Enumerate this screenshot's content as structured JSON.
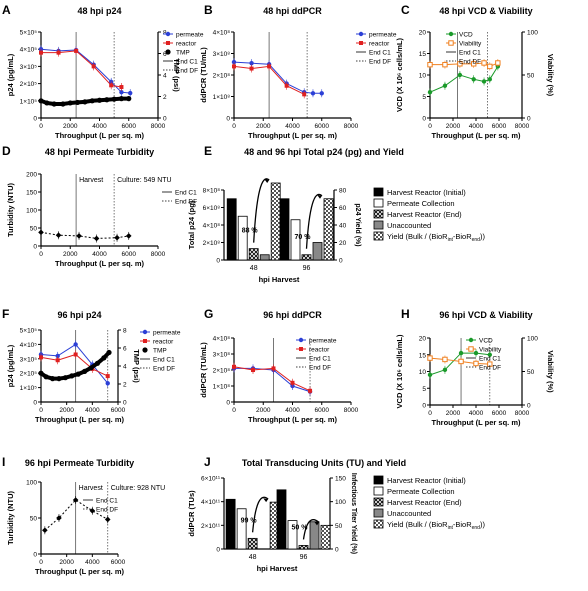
{
  "chart_data": [
    {
      "id": "A",
      "letter": "A",
      "type": "line",
      "title": "48 hpi p24",
      "xlabel": "Throughput (L per sq. m)",
      "ylabel": "p24 (pg/mL)",
      "y2label": "TMP (psi)",
      "xlim": [
        0,
        8000
      ],
      "xticks": [
        "0",
        "2000",
        "4000",
        "6000",
        "8000"
      ],
      "ylim": [
        0,
        500000
      ],
      "yticks": [
        "0",
        "1×10⁵",
        "2×10⁵",
        "3×10⁵",
        "4×10⁵",
        "5×10⁵"
      ],
      "y2lim": [
        0,
        8
      ],
      "y2ticks": [
        "0",
        "2",
        "4",
        "6",
        "8"
      ],
      "vlines": [
        2400,
        5000
      ],
      "legend": [
        "permeate",
        "reactor",
        "TMP",
        "End C1",
        "End DF"
      ],
      "series": [
        {
          "name": "permeate",
          "color": "#2b3fd6",
          "marker": "circle",
          "axis": "y",
          "x": [
            0,
            1200,
            2400,
            3600,
            4800,
            5500,
            6100
          ],
          "y": [
            400000,
            390000,
            395000,
            310000,
            210000,
            150000,
            145000
          ]
        },
        {
          "name": "reactor",
          "color": "#e02020",
          "marker": "square",
          "axis": "y",
          "x": [
            0,
            1200,
            2400,
            3600,
            4800,
            5500
          ],
          "y": [
            380000,
            380000,
            390000,
            300000,
            190000,
            180000
          ]
        },
        {
          "name": "TMP",
          "color": "#000000",
          "marker": "dots",
          "axis": "y2",
          "x": [
            0,
            400,
            900,
            1500,
            2000,
            2500,
            3000,
            3500,
            4000,
            4500,
            5000,
            5500,
            6000
          ],
          "y": [
            1.6,
            1.4,
            1.3,
            1.3,
            1.4,
            1.45,
            1.5,
            1.6,
            1.65,
            1.7,
            1.75,
            1.8,
            1.8
          ]
        }
      ]
    },
    {
      "id": "B",
      "letter": "B",
      "type": "line",
      "title": "48 hpi ddPCR",
      "xlabel": "Throughput (L per sq. m)",
      "ylabel": "ddPCR (TU/mL)",
      "xlim": [
        0,
        8000
      ],
      "xticks": [
        "0",
        "2000",
        "4000",
        "6000",
        "8000"
      ],
      "ylim": [
        0,
        400000000
      ],
      "yticks": [
        "0",
        "1×10⁸",
        "2×10⁸",
        "3×10⁸",
        "4×10⁸"
      ],
      "vlines": [
        2400,
        5000
      ],
      "legend": [
        "permeate",
        "reactor",
        "End C1",
        "End DF"
      ],
      "series": [
        {
          "name": "permeate",
          "color": "#2b3fd6",
          "marker": "circle",
          "axis": "y",
          "x": [
            0,
            1200,
            2400,
            3600,
            4800,
            5400,
            6000
          ],
          "y": [
            260000000,
            255000000,
            250000000,
            160000000,
            120000000,
            115000000,
            115000000
          ]
        },
        {
          "name": "reactor",
          "color": "#e02020",
          "marker": "square",
          "axis": "y",
          "x": [
            0,
            1200,
            2400,
            3600,
            4800
          ],
          "y": [
            240000000,
            230000000,
            240000000,
            150000000,
            110000000
          ]
        }
      ]
    },
    {
      "id": "C",
      "letter": "C",
      "type": "line",
      "title": "48 hpi VCD & Viability",
      "xlabel": "Throughput (L per sq. m)",
      "ylabel": "VCD (X 10⁶ cells/mL)",
      "y2label": "Viability (%)",
      "xlim": [
        0,
        8000
      ],
      "xticks": [
        "0",
        "2000",
        "4000",
        "6000",
        "8000"
      ],
      "ylim": [
        0,
        20
      ],
      "yticks": [
        "0",
        "5",
        "10",
        "15",
        "20"
      ],
      "y2lim": [
        0,
        100
      ],
      "y2ticks": [
        "0",
        "50",
        "100"
      ],
      "vlines": [
        2400,
        5000
      ],
      "legend": [
        "VCD",
        "Viability",
        "End C1",
        "End DF"
      ],
      "series": [
        {
          "name": "VCD",
          "color": "#1a9a2a",
          "marker": "circle",
          "axis": "y",
          "x": [
            0,
            1300,
            2600,
            3800,
            4700,
            5200,
            5900
          ],
          "y": [
            6,
            7.5,
            10,
            9,
            8.5,
            9,
            12
          ]
        },
        {
          "name": "Viability",
          "color": "#f08020",
          "marker": "opensquare",
          "axis": "y2",
          "x": [
            0,
            1300,
            2600,
            3800,
            4700,
            5200,
            5900
          ],
          "y": [
            62,
            62,
            63,
            63,
            64,
            60,
            64
          ]
        }
      ]
    },
    {
      "id": "D",
      "letter": "D",
      "type": "line",
      "title": "48 hpi Permeate Turbidity",
      "xlabel": "Throughput (L per sq. m)",
      "ylabel": "Turbidity (NTU)",
      "xlim": [
        0,
        8000
      ],
      "xticks": [
        "0",
        "2000",
        "4000",
        "6000",
        "8000"
      ],
      "ylim": [
        0,
        200
      ],
      "yticks": [
        "0",
        "50",
        "100",
        "150",
        "200"
      ],
      "vlines": [
        2400,
        5000
      ],
      "annotations": [
        "Harvest",
        "Culture: 549 NTU"
      ],
      "legend": [
        "End C1",
        "End DF"
      ],
      "series": [
        {
          "name": "",
          "color": "#000000",
          "marker": "diamond",
          "axis": "y",
          "x": [
            0,
            1200,
            2600,
            3800,
            5200,
            6000
          ],
          "y": [
            38,
            30,
            28,
            21,
            23,
            28
          ]
        }
      ]
    },
    {
      "id": "E",
      "letter": "E",
      "type": "bar",
      "title": "48 and 96 hpi Total  p24 (pg) and Yield",
      "xlabel": "hpi Harvest",
      "ylabel": "Total p24 (pg)",
      "y2label": "p24 Yield (%)",
      "ylim": [
        0,
        800000000
      ],
      "yticks": [
        "0",
        "2×10⁸",
        "4×10⁸",
        "6×10⁸",
        "8×10⁸"
      ],
      "y2lim": [
        0,
        80
      ],
      "y2ticks": [
        "0",
        "20",
        "40",
        "60",
        "80"
      ],
      "categories": [
        "48",
        "96"
      ],
      "yields": [
        "88 %",
        "70 %"
      ],
      "legend": [
        "Harvest Reactor (Initial)",
        "Permeate Collection",
        "Harvest Reactor (End)",
        "Unaccounted",
        "Yield (Bulk / (BioR",
        "int",
        "-BioR",
        "end",
        "))"
      ],
      "series": [
        {
          "name": "Harvest Reactor (Initial)",
          "values": [
            700000000,
            700000000
          ],
          "style": "black"
        },
        {
          "name": "Permeate Collection",
          "values": [
            500000000,
            460000000
          ],
          "style": "white"
        },
        {
          "name": "Harvest Reactor (End)",
          "values": [
            130000000,
            60000000
          ],
          "style": "cross"
        },
        {
          "name": "Unaccounted",
          "values": [
            60000000,
            200000000
          ],
          "style": "gray"
        },
        {
          "name": "Yield",
          "values": [
            88,
            70
          ],
          "axis": "y2",
          "style": "checker"
        }
      ]
    },
    {
      "id": "F",
      "letter": "F",
      "type": "line",
      "title": "96 hpi p24",
      "xlabel": "Throughput (L per sq. m)",
      "ylabel": "p24 (pg/mL)",
      "y2label": "TMP (psi)",
      "xlim": [
        0,
        6000
      ],
      "xticks": [
        "0",
        "2000",
        "4000",
        "6000"
      ],
      "ylim": [
        0,
        500000
      ],
      "yticks": [
        "0",
        "1×10⁵",
        "2×10⁵",
        "3×10⁵",
        "4×10⁵",
        "5×10⁵"
      ],
      "y2lim": [
        0,
        8
      ],
      "y2ticks": [
        "0",
        "2",
        "4",
        "6",
        "8"
      ],
      "vlines": [
        2700,
        5200
      ],
      "legend": [
        "permeate",
        "reactor",
        "TMP",
        "End C1",
        "End DF"
      ],
      "series": [
        {
          "name": "permeate",
          "color": "#2b3fd6",
          "marker": "circle",
          "axis": "y",
          "x": [
            0,
            1300,
            2700,
            4000,
            5200
          ],
          "y": [
            330000,
            320000,
            400000,
            260000,
            130000
          ]
        },
        {
          "name": "reactor",
          "color": "#e02020",
          "marker": "square",
          "axis": "y",
          "x": [
            0,
            1300,
            2700,
            4000,
            5200
          ],
          "y": [
            310000,
            290000,
            330000,
            230000,
            180000
          ]
        },
        {
          "name": "TMP",
          "color": "#000000",
          "marker": "dots",
          "axis": "y2",
          "x": [
            0,
            400,
            900,
            1400,
            1900,
            2400,
            2900,
            3400,
            3900,
            4400,
            4900,
            5300
          ],
          "y": [
            3.2,
            2.8,
            2.6,
            2.6,
            2.7,
            2.9,
            3.1,
            3.4,
            3.8,
            4.3,
            4.9,
            5.5
          ]
        }
      ]
    },
    {
      "id": "G",
      "letter": "G",
      "type": "line",
      "title": "96 hpi ddPCR",
      "xlabel": "Throughput (L per sq. m)",
      "ylabel": "ddPCR (TU/mL)",
      "xlim": [
        0,
        8000
      ],
      "xticks": [
        "0",
        "2000",
        "4000",
        "6000",
        "8000"
      ],
      "ylim": [
        0,
        400000000
      ],
      "yticks": [
        "0",
        "1×10⁸",
        "2×10⁸",
        "3×10⁸",
        "4×10⁸"
      ],
      "vlines": [
        2700,
        5200
      ],
      "legend": [
        "permeate",
        "reactor",
        "End C1",
        "End DF"
      ],
      "series": [
        {
          "name": "permeate",
          "color": "#2b3fd6",
          "marker": "circle",
          "axis": "y",
          "x": [
            0,
            1300,
            2700,
            4000,
            5200
          ],
          "y": [
            210000000,
            210000000,
            200000000,
            100000000,
            65000000
          ]
        },
        {
          "name": "reactor",
          "color": "#e02020",
          "marker": "square",
          "axis": "y",
          "x": [
            0,
            1300,
            2700,
            4000,
            5200
          ],
          "y": [
            220000000,
            200000000,
            210000000,
            120000000,
            70000000
          ]
        }
      ]
    },
    {
      "id": "H",
      "letter": "H",
      "type": "line",
      "title": "96 hpi VCD & Viability",
      "xlabel": "Throughput (L per sq. m)",
      "ylabel": "VCD (X 10⁶ cells/mL)",
      "y2label": "Viability (%)",
      "xlim": [
        0,
        8000
      ],
      "xticks": [
        "0",
        "2000",
        "4000",
        "6000",
        "8000"
      ],
      "ylim": [
        0,
        20
      ],
      "yticks": [
        "0",
        "5",
        "10",
        "15",
        "20"
      ],
      "y2lim": [
        0,
        100
      ],
      "y2ticks": [
        "0",
        "50",
        "100"
      ],
      "vlines": [
        2700,
        5200
      ],
      "legend": [
        "VCD",
        "Viability",
        "End C1",
        "End DF"
      ],
      "series": [
        {
          "name": "VCD",
          "color": "#1a9a2a",
          "marker": "circle",
          "axis": "y",
          "x": [
            0,
            1300,
            2700,
            4000,
            5200
          ],
          "y": [
            9,
            10.5,
            15.5,
            15.5,
            15
          ]
        },
        {
          "name": "Viability",
          "color": "#f08020",
          "marker": "opensquare",
          "axis": "y2",
          "x": [
            0,
            1300,
            2700,
            4000,
            5200
          ],
          "y": [
            70,
            68,
            65,
            62,
            61
          ]
        }
      ]
    },
    {
      "id": "I",
      "letter": "I",
      "type": "line",
      "title": "96 hpi Permeate Turbidity",
      "xlabel": "Throughput (L per sq. m)",
      "ylabel": "Turbidity (NTU)",
      "xlim": [
        0,
        6000
      ],
      "xticks": [
        "0",
        "2000",
        "4000",
        "6000"
      ],
      "ylim": [
        0,
        100
      ],
      "yticks": [
        "0",
        "50",
        "100"
      ],
      "vlines": [
        2700,
        5200
      ],
      "annotations": [
        "Harvest",
        "Culture: 928 NTU"
      ],
      "legend": [
        "End C1",
        "End DF"
      ],
      "series": [
        {
          "name": "",
          "color": "#000000",
          "marker": "diamond",
          "axis": "y",
          "x": [
            300,
            1400,
            2700,
            4000,
            5200
          ],
          "y": [
            33,
            50,
            75,
            60,
            48
          ]
        }
      ]
    },
    {
      "id": "J",
      "letter": "J",
      "type": "bar",
      "title": "Total Transducing  Units  (TU) and Yield",
      "xlabel": "hpi Harvest",
      "ylabel": "ddPCR (TUs)",
      "y2label": "Infectious Titer Yield (%)",
      "ylim": [
        0,
        600000000000
      ],
      "yticks": [
        "0",
        "2×10¹¹",
        "4×10¹¹",
        "6×10¹¹"
      ],
      "y2lim": [
        0,
        150
      ],
      "y2ticks": [
        "0",
        "50",
        "100",
        "150"
      ],
      "categories": [
        "48",
        "96"
      ],
      "yields": [
        "99 %",
        "50 %"
      ],
      "legend": [
        "Harvest Reactor (Initial)",
        "Permeate Collection",
        "Harvest Reactor (End)",
        "Unaccounted",
        "Yield (Bulk / (BioR",
        "int",
        "-BioR",
        "end",
        "))"
      ],
      "series": [
        {
          "name": "Harvest Reactor (Initial)",
          "values": [
            420000000000,
            500000000000
          ],
          "style": "black"
        },
        {
          "name": "Permeate Collection",
          "values": [
            340000000000,
            240000000000
          ],
          "style": "white"
        },
        {
          "name": "Harvest Reactor (End)",
          "values": [
            90000000000,
            30000000000
          ],
          "style": "cross"
        },
        {
          "name": "Unaccounted",
          "values": [
            0,
            230000000000
          ],
          "style": "gray"
        },
        {
          "name": "Yield",
          "values": [
            99,
            50
          ],
          "axis": "y2",
          "style": "checker"
        }
      ]
    }
  ]
}
